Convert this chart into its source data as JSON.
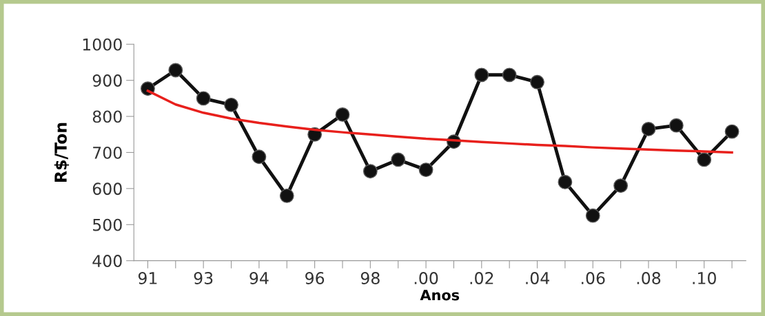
{
  "chart_data": {
    "type": "line",
    "xlabel": "Anos",
    "ylabel": "R$/Ton",
    "categories": [
      "91",
      null,
      "93",
      null,
      "94",
      null,
      "96",
      null,
      "98",
      null,
      ".00",
      null,
      ".02",
      null,
      ".04",
      null,
      ".06",
      null,
      ".08",
      null,
      ".10",
      null
    ],
    "series": [
      {
        "color": "#111111",
        "marker": "circle",
        "values": [
          877,
          928,
          850,
          832,
          688,
          580,
          750,
          805,
          648,
          680,
          652,
          730,
          915,
          915,
          895,
          618,
          525,
          608,
          765,
          775,
          680,
          758
        ]
      },
      {
        "color": "#e8201c",
        "marker": "none",
        "values": [
          871,
          833,
          810,
          794,
          782,
          772,
          763,
          756,
          750,
          744,
          738,
          734,
          729,
          725,
          721,
          718,
          714,
          711,
          708,
          705,
          703,
          700
        ]
      }
    ],
    "ylim": [
      400,
      1000
    ],
    "yticks": [
      400,
      500,
      600,
      700,
      800,
      900,
      1000
    ],
    "grid": false,
    "legend": false
  }
}
